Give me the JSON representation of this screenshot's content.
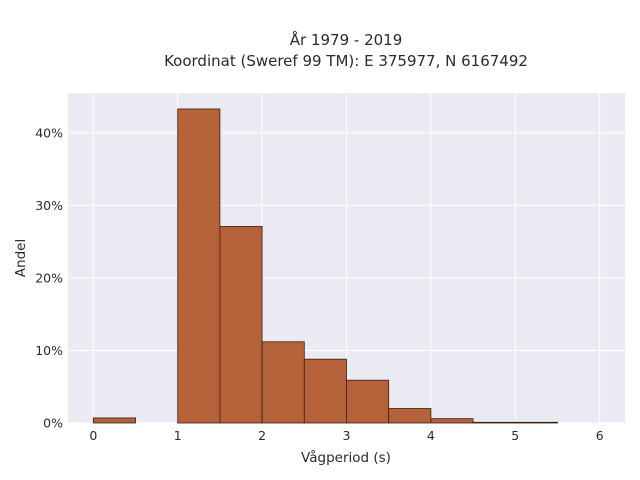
{
  "chart_data": {
    "type": "bar",
    "title_line1": "År 1979 - 2019",
    "title_line2": "Koordinat (Sweref 99 TM): E 375977, N 6167492",
    "xlabel": "Vågperiod (s)",
    "ylabel": "Andel",
    "xlim": [
      -0.3,
      6.3
    ],
    "ylim": [
      0,
      45.5
    ],
    "x_ticks": [
      0,
      1,
      2,
      3,
      4,
      5,
      6
    ],
    "x_tick_labels": [
      "0",
      "1",
      "2",
      "3",
      "4",
      "5",
      "6"
    ],
    "y_ticks": [
      0,
      10,
      20,
      30,
      40
    ],
    "y_tick_labels": [
      "0%",
      "10%",
      "20%",
      "30%",
      "40%"
    ],
    "bin_width": 0.5,
    "bins": [
      {
        "start": 0.0,
        "value": 0.7
      },
      {
        "start": 0.5,
        "value": 0.0
      },
      {
        "start": 1.0,
        "value": 43.3
      },
      {
        "start": 1.5,
        "value": 27.1
      },
      {
        "start": 2.0,
        "value": 11.2
      },
      {
        "start": 2.5,
        "value": 8.8
      },
      {
        "start": 3.0,
        "value": 5.9
      },
      {
        "start": 3.5,
        "value": 2.0
      },
      {
        "start": 4.0,
        "value": 0.6
      },
      {
        "start": 4.5,
        "value": 0.1
      },
      {
        "start": 5.0,
        "value": 0.1
      },
      {
        "start": 5.5,
        "value": 0.0
      }
    ],
    "grid": true,
    "colors": {
      "bar_fill": "#b5623a",
      "bar_edge": "#3d1f12",
      "plot_bg": "#eaeaf2",
      "grid": "#ffffff"
    }
  }
}
